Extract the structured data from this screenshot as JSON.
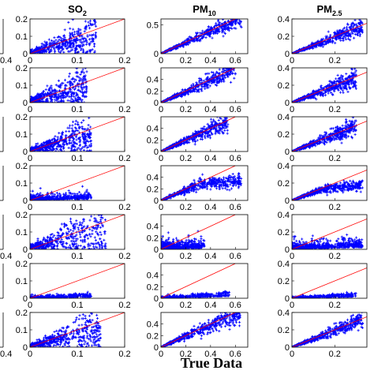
{
  "figure": {
    "xlabel": "True Data",
    "point_color": "#0000ff",
    "line_color": "#ff0000",
    "marker": "plus",
    "row_count": 7,
    "truncated_left_tick": "0.4"
  },
  "chart_data": [
    {
      "type": "scatter",
      "title": "SO",
      "title_sub": "2",
      "xlim": [
        0,
        0.2
      ],
      "ylim": [
        0,
        0.2
      ],
      "xticks": [
        "0",
        "0.1",
        "0.2"
      ],
      "yticks": [
        "0",
        "0.1",
        "0.2"
      ],
      "reference_line": "y = x",
      "rows": [
        {
          "shape": "fan",
          "spread": 0.45,
          "xmax": 0.14,
          "density": 520
        },
        {
          "shape": "fan",
          "spread": 0.55,
          "xmax": 0.12,
          "density": 520
        },
        {
          "shape": "fan",
          "spread": 0.45,
          "xmax": 0.13,
          "density": 520
        },
        {
          "shape": "flat",
          "spread": 0.25,
          "xmax": 0.13,
          "density": 480
        },
        {
          "shape": "fan",
          "spread": 0.6,
          "xmax": 0.16,
          "density": 520
        },
        {
          "shape": "flat",
          "spread": 0.1,
          "xmax": 0.13,
          "density": 460
        },
        {
          "shape": "fan",
          "spread": 0.4,
          "xmax": 0.15,
          "density": 520
        }
      ]
    },
    {
      "type": "scatter",
      "title": "PM",
      "title_sub": "10",
      "xlim": [
        0,
        0.7
      ],
      "ylim": [
        0,
        0.6
      ],
      "xticks": [
        "0",
        "0.2",
        "0.4",
        "0.6"
      ],
      "yticks": [
        "0",
        "0.5"
      ],
      "yticks_alt": [
        "0",
        "0.2",
        "0.4"
      ],
      "reference_line": "y = x",
      "rows": [
        {
          "shape": "linear",
          "spread": 0.12,
          "xmax": 0.65,
          "density": 560
        },
        {
          "shape": "linear",
          "spread": 0.15,
          "xmax": 0.6,
          "density": 560
        },
        {
          "shape": "linear",
          "spread": 0.15,
          "xmax": 0.55,
          "density": 560
        },
        {
          "shape": "bent",
          "spread": 0.15,
          "xmax": 0.65,
          "density": 560
        },
        {
          "shape": "flat",
          "spread": 0.35,
          "xmax": 0.35,
          "density": 620
        },
        {
          "shape": "flat",
          "spread": 0.08,
          "xmax": 0.55,
          "density": 460
        },
        {
          "shape": "linear",
          "spread": 0.15,
          "xmax": 0.65,
          "density": 560
        }
      ]
    },
    {
      "type": "scatter",
      "title": "PM",
      "title_sub": "2.5",
      "xlim": [
        0,
        0.35
      ],
      "ylim": [
        0,
        0.4
      ],
      "xticks": [
        "0",
        "0.2"
      ],
      "yticks": [
        "0",
        "0.2",
        "0.4"
      ],
      "reference_line": "y = x",
      "rows": [
        {
          "shape": "linear",
          "spread": 0.15,
          "xmax": 0.33,
          "density": 560
        },
        {
          "shape": "linear",
          "spread": 0.2,
          "xmax": 0.3,
          "density": 560
        },
        {
          "shape": "linear",
          "spread": 0.18,
          "xmax": 0.3,
          "density": 560
        },
        {
          "shape": "bent",
          "spread": 0.15,
          "xmax": 0.33,
          "density": 560
        },
        {
          "shape": "flat",
          "spread": 0.35,
          "xmax": 0.33,
          "density": 640
        },
        {
          "shape": "flat",
          "spread": 0.06,
          "xmax": 0.3,
          "density": 440
        },
        {
          "shape": "linear",
          "spread": 0.15,
          "xmax": 0.33,
          "density": 560
        }
      ]
    }
  ]
}
